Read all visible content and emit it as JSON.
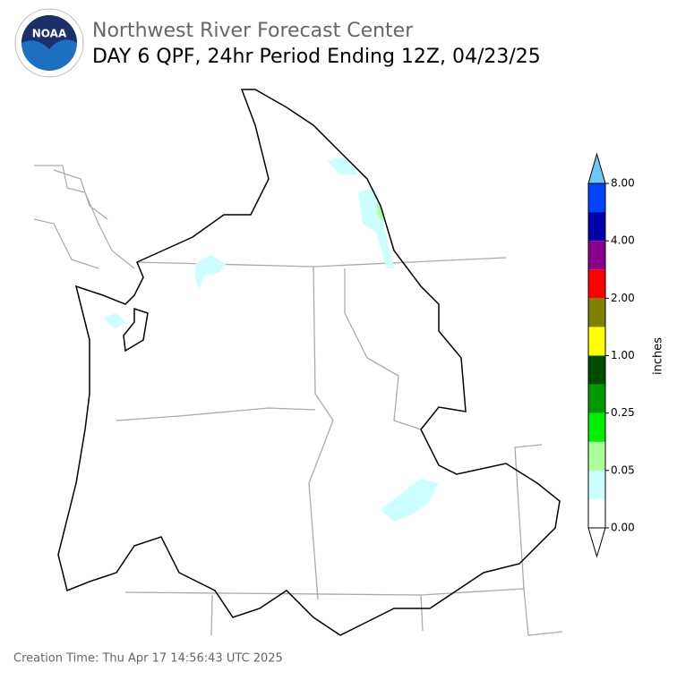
{
  "header": {
    "title": "Northwest River Forecast Center",
    "subtitle": "DAY 6 QPF, 24hr Period Ending 12Z, 04/23/25",
    "logo_text": "NOAA"
  },
  "colorbar": {
    "label": "inches",
    "ticks": [
      "0.00",
      "0.05",
      "0.25",
      "1.00",
      "2.00",
      "4.00",
      "8.00"
    ],
    "colors": [
      "#ffffff",
      "#ccffff",
      "#aaff99",
      "#00ee00",
      "#009900",
      "#004d00",
      "#ffff00",
      "#808000",
      "#ff0000",
      "#8b008b",
      "#0000aa",
      "#0044ff"
    ],
    "over_color": "#6ec8f5",
    "under_color": "#ffffff"
  },
  "footer": {
    "creation_time": "Creation Time: Thu Apr 17 14:56:43 UTC 2025"
  }
}
